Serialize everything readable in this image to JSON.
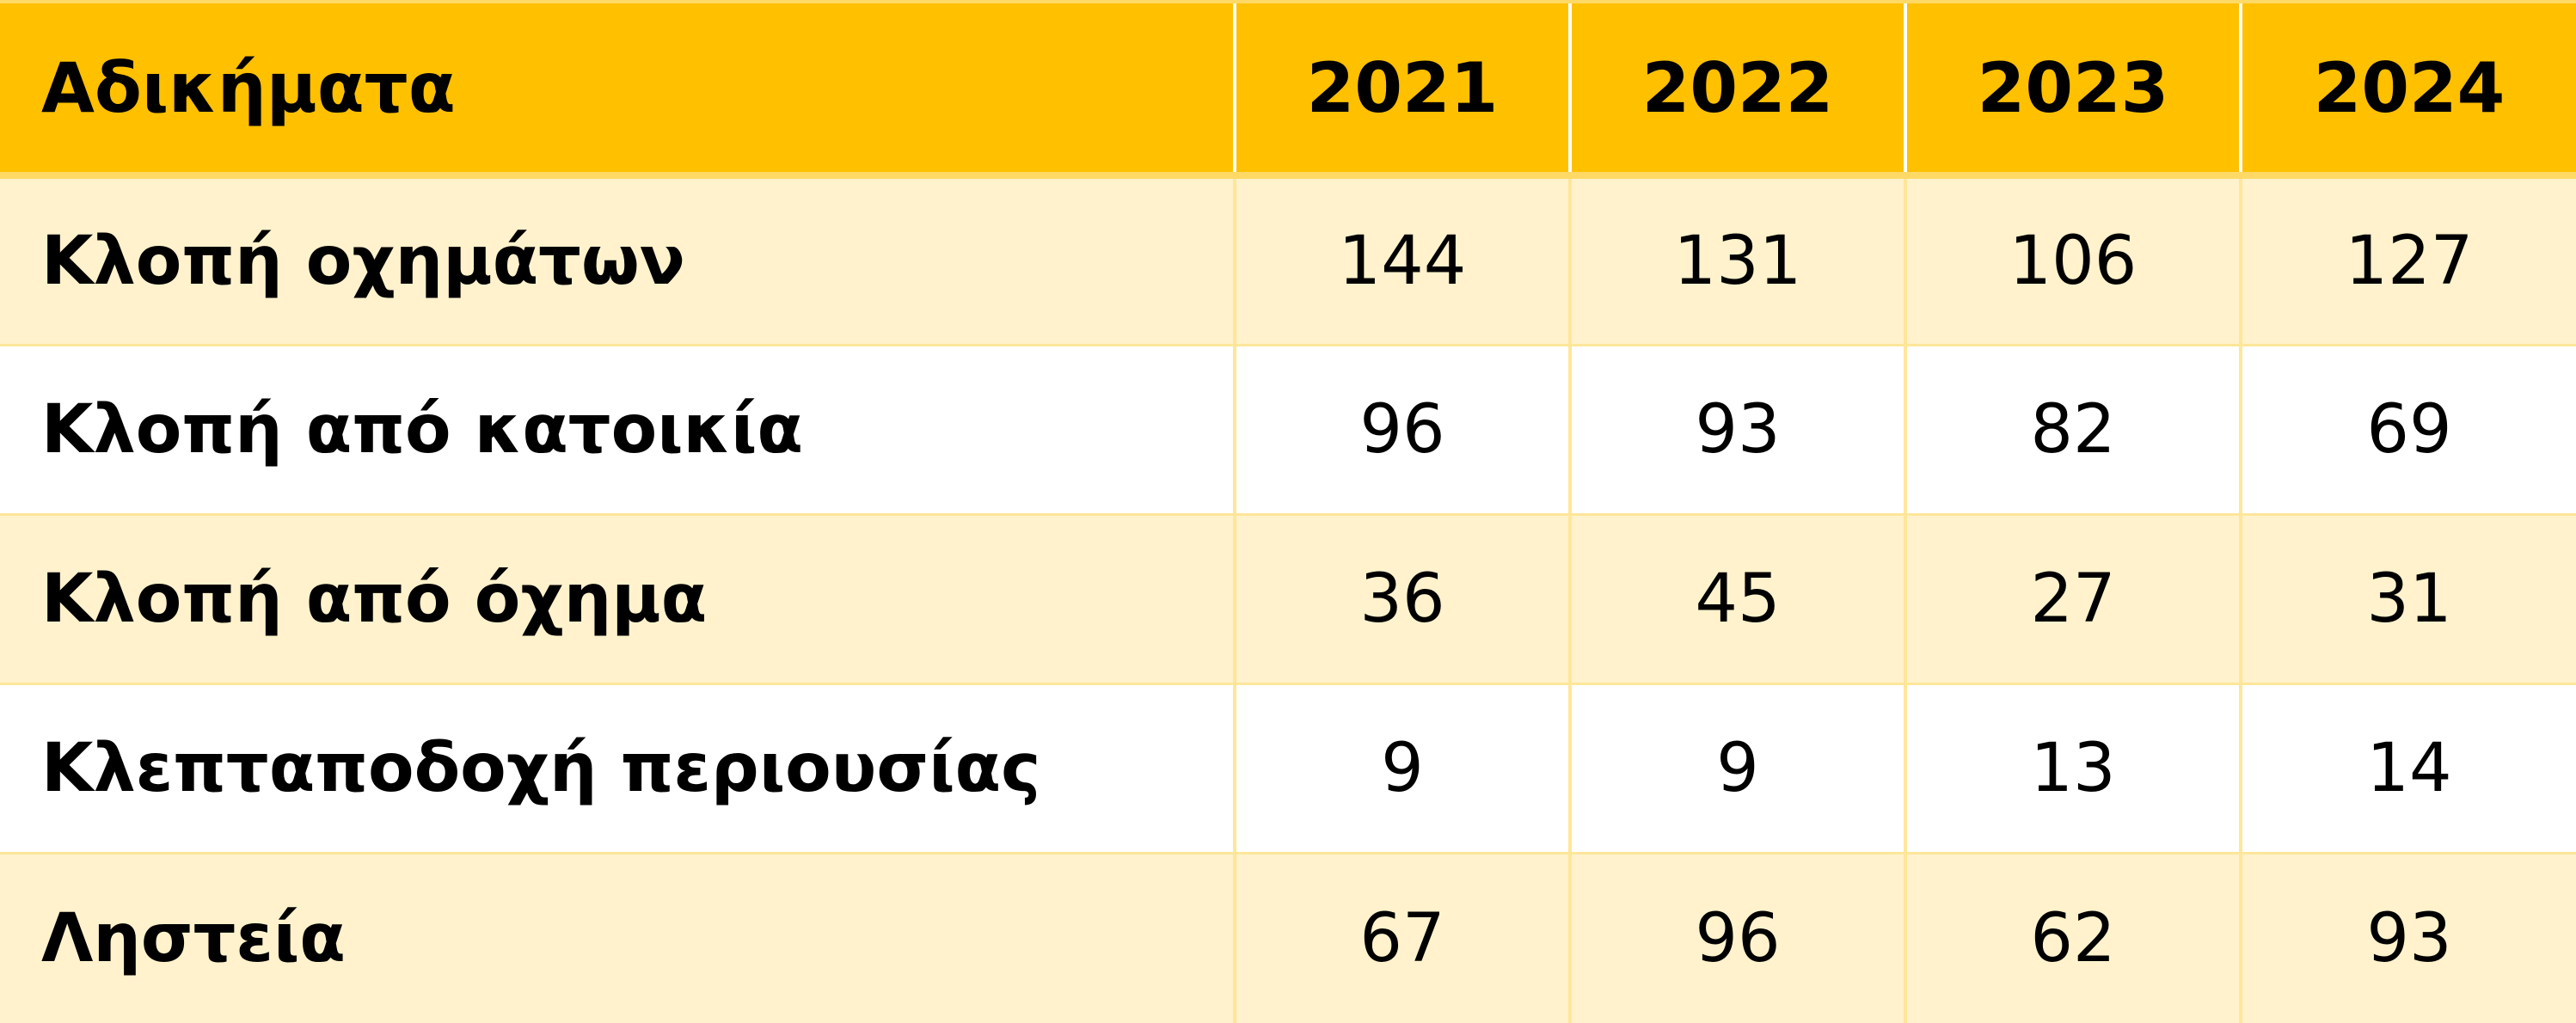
{
  "colors": {
    "header_bg": "#ffc000",
    "row_band": "#fff2cc",
    "row_plain": "#ffffff",
    "grid_line": "#ffe699"
  },
  "chart_data": {
    "type": "table",
    "columns": [
      "Αδικήματα",
      "2021",
      "2022",
      "2023",
      "2024"
    ],
    "rows": [
      {
        "label": "Κλοπή οχημάτων",
        "values": [
          "144",
          "131",
          "106",
          "127"
        ]
      },
      {
        "label": "Κλοπή από κατοικία",
        "values": [
          "96",
          "93",
          "82",
          "69"
        ]
      },
      {
        "label": "Κλοπή από όχημα",
        "values": [
          "36",
          "45",
          "27",
          "31"
        ]
      },
      {
        "label": "Κλεπταποδοχή περιουσίας",
        "values": [
          "9",
          "9",
          "13",
          "14"
        ]
      },
      {
        "label": "Ληστεία",
        "values": [
          "67",
          "96",
          "62",
          "93"
        ]
      }
    ]
  }
}
